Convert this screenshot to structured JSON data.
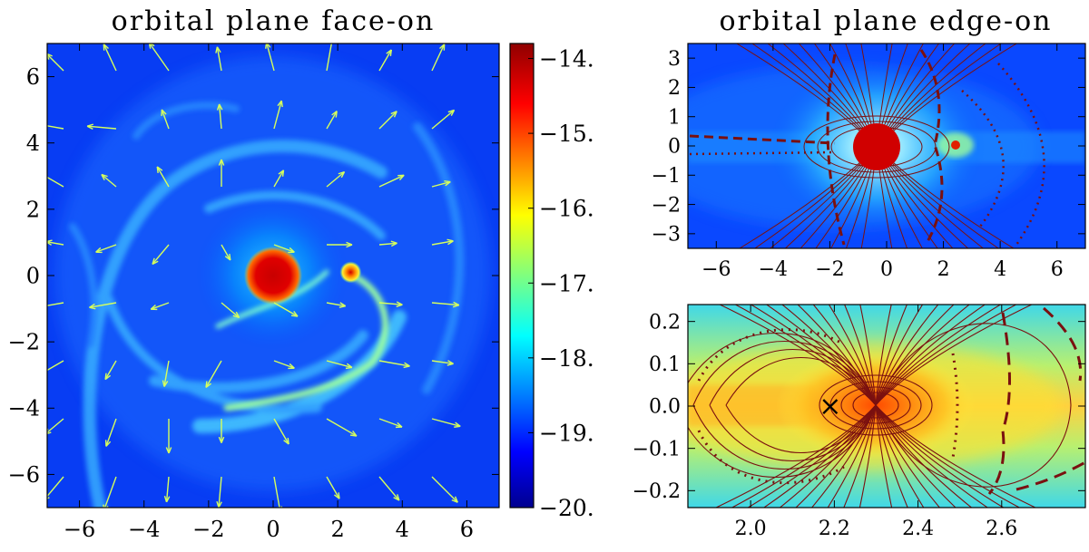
{
  "chart_data": [
    {
      "type": "heatmap",
      "title": "orbital plane face-on",
      "xlim": [
        -7,
        7
      ],
      "ylim": [
        -7,
        7
      ],
      "xticks": [
        "−6",
        "−4",
        "−2",
        "0",
        "2",
        "4",
        "6"
      ],
      "yticks": [
        "6",
        "4",
        "2",
        "0",
        "−2",
        "−4",
        "−6"
      ],
      "xtick_values": [
        -6,
        -4,
        -2,
        0,
        2,
        4,
        6
      ],
      "ytick_values": [
        6,
        4,
        2,
        0,
        -2,
        -4,
        -6
      ],
      "features": {
        "primary": {
          "x": 0,
          "y": 0
        },
        "secondary": {
          "x": 2.4,
          "y": 0.1
        }
      },
      "vector_field": true,
      "vector_color": "#d6ff5c",
      "colormap": "jet"
    },
    {
      "type": "colorbar",
      "range": [
        -20,
        -13.8
      ],
      "ticks": [
        "−14.",
        "−15.",
        "−16.",
        "−17.",
        "−18.",
        "−19.",
        "−20."
      ],
      "tick_values": [
        -14,
        -15,
        -16,
        -17,
        -18,
        -19,
        -20
      ]
    },
    {
      "type": "heatmap",
      "title": "orbital plane edge-on",
      "xlim": [
        -7,
        7
      ],
      "ylim": [
        -3.5,
        3.5
      ],
      "xticks": [
        "−6",
        "−4",
        "−2",
        "0",
        "2",
        "4",
        "6"
      ],
      "yticks": [
        "3",
        "2",
        "1",
        "0",
        "−1",
        "−2",
        "−3"
      ],
      "xtick_values": [
        -6,
        -4,
        -2,
        0,
        2,
        4,
        6
      ],
      "ytick_values": [
        3,
        2,
        1,
        0,
        -1,
        -2,
        -3
      ],
      "contours": [
        "solid",
        "dashed",
        "dotted"
      ],
      "contour_color": "#7a1010"
    },
    {
      "type": "heatmap",
      "title": "",
      "xlim": [
        1.85,
        2.8
      ],
      "ylim": [
        -0.24,
        0.24
      ],
      "xticks": [
        "2.0",
        "2.2",
        "2.4",
        "2.6"
      ],
      "yticks": [
        "0.2",
        "0.1",
        "0.0",
        "−0.1",
        "−0.2"
      ],
      "xtick_values": [
        2.0,
        2.2,
        2.4,
        2.6
      ],
      "ytick_values": [
        0.2,
        0.1,
        0.0,
        -0.1,
        -0.2
      ],
      "marker": {
        "symbol": "×",
        "x": 2.19,
        "y": 0.0
      },
      "contour_color": "#7a1010"
    }
  ]
}
